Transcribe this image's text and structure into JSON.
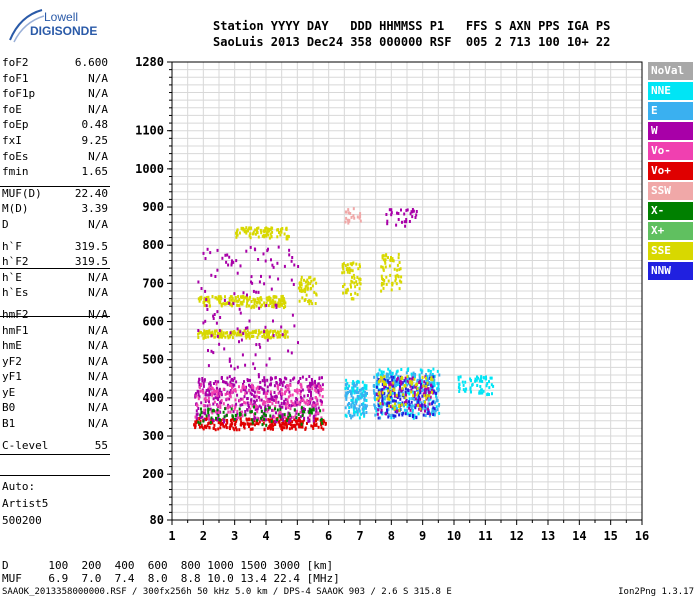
{
  "logo": {
    "line1": "Lowell",
    "line2": "DIGISONDE"
  },
  "header": {
    "row1": "Station YYYY DAY   DDD HHMMSS P1   FFS S AXN PPS IGA PS",
    "row2": "SaoLuis 2013 Dec24 358 000000 RSF  005 2 713 100 10+ 22"
  },
  "params": [
    {
      "label": "foF2",
      "value": "6.600"
    },
    {
      "label": "foF1",
      "value": "N/A"
    },
    {
      "label": "foF1p",
      "value": "N/A"
    },
    {
      "label": "foE",
      "value": "N/A"
    },
    {
      "label": "foEp",
      "value": "0.48"
    },
    {
      "label": "fxI",
      "value": "9.25"
    },
    {
      "label": "foEs",
      "value": "N/A"
    },
    {
      "label": "fmin",
      "value": "1.65"
    },
    {
      "label": "MUF(D)",
      "value": "22.40"
    },
    {
      "label": "M(D)",
      "value": "3.39"
    },
    {
      "label": "D",
      "value": "N/A"
    },
    {
      "label": "h`F",
      "value": "319.5"
    },
    {
      "label": "h`F2",
      "value": "319.5"
    },
    {
      "label": "h`E",
      "value": "N/A"
    },
    {
      "label": "h`Es",
      "value": "N/A"
    },
    {
      "label": "hmF2",
      "value": "N/A"
    },
    {
      "label": "hmF1",
      "value": "N/A"
    },
    {
      "label": "hmE",
      "value": "N/A"
    },
    {
      "label": "yF2",
      "value": "N/A"
    },
    {
      "label": "yF1",
      "value": "N/A"
    },
    {
      "label": "yE",
      "value": "N/A"
    },
    {
      "label": "B0",
      "value": "N/A"
    },
    {
      "label": "B1",
      "value": "N/A"
    },
    {
      "label": "C-level",
      "value": "55"
    }
  ],
  "auto": {
    "line1": "Auto:",
    "line2": "Artist5",
    "line3": "500200"
  },
  "legend": [
    {
      "label": "NoVal",
      "color": "#a8a8a8"
    },
    {
      "label": "NNE",
      "color": "#00e5f5"
    },
    {
      "label": "E",
      "color": "#3ab0f0"
    },
    {
      "label": "W",
      "color": "#a800a8"
    },
    {
      "label": "Vo-",
      "color": "#f040b0"
    },
    {
      "label": "Vo+",
      "color": "#e00000"
    },
    {
      "label": "SSW",
      "color": "#f0a8a8"
    },
    {
      "label": "X-",
      "color": "#008000"
    },
    {
      "label": "X+",
      "color": "#60c060"
    },
    {
      "label": "SSE",
      "color": "#d8d800"
    },
    {
      "label": "NNW",
      "color": "#2020e0"
    }
  ],
  "bottom": {
    "d_row": "D      100  200  400  600  800 1000 1500 3000 [km]",
    "muf_row": "MUF    6.9  7.0  7.4  8.0  8.8 10.0 13.4 22.4 [MHz]",
    "footer_left": "SAAOK_2013358000000.RSF / 300fx256h 50 kHz 5.0 km / DPS-4 SAAOK 903 / 2.6 S 315.8 E",
    "footer_right": "Ion2Png 1.3.17"
  },
  "chart_data": {
    "type": "scatter",
    "xlim": [
      1,
      16
    ],
    "ylim": [
      80,
      1280
    ],
    "x_ticks": [
      "1",
      "2",
      "3",
      "4",
      "5",
      "6",
      "7",
      "8",
      "9",
      "10",
      "11",
      "12",
      "13",
      "14",
      "15",
      "16"
    ],
    "y_ticks": [
      "80",
      "200",
      "300",
      "400",
      "500",
      "600",
      "700",
      "800",
      "900",
      "1000",
      "1100",
      "1280"
    ],
    "grid": true,
    "clusters": [
      {
        "series": "Vo+",
        "x": [
          1.65,
          5.9
        ],
        "y": [
          320,
          350
        ],
        "n": 260
      },
      {
        "series": "W",
        "x": [
          1.7,
          5.8
        ],
        "y": [
          340,
          460
        ],
        "n": 420
      },
      {
        "series": "Vo-",
        "x": [
          1.7,
          5.8
        ],
        "y": [
          350,
          440
        ],
        "n": 220
      },
      {
        "series": "X-",
        "x": [
          1.8,
          5.8
        ],
        "y": [
          330,
          380
        ],
        "n": 90
      },
      {
        "series": "SSE",
        "x": [
          1.8,
          4.7
        ],
        "y": [
          560,
          580
        ],
        "n": 160
      },
      {
        "series": "SSE",
        "x": [
          1.8,
          4.6
        ],
        "y": [
          640,
          670
        ],
        "n": 180
      },
      {
        "series": "SSE",
        "x": [
          3.0,
          4.7
        ],
        "y": [
          820,
          850
        ],
        "n": 90
      },
      {
        "series": "SSE",
        "x": [
          5.0,
          5.6
        ],
        "y": [
          650,
          720
        ],
        "n": 50
      },
      {
        "series": "SSE",
        "x": [
          6.4,
          7.0
        ],
        "y": [
          660,
          760
        ],
        "n": 60
      },
      {
        "series": "SSE",
        "x": [
          7.6,
          8.3
        ],
        "y": [
          680,
          780
        ],
        "n": 60
      },
      {
        "series": "W",
        "x": [
          1.8,
          5.0
        ],
        "y": [
          460,
          800
        ],
        "n": 130
      },
      {
        "series": "NNE",
        "x": [
          7.4,
          9.5
        ],
        "y": [
          350,
          480
        ],
        "n": 180
      },
      {
        "series": "E",
        "x": [
          7.4,
          9.5
        ],
        "y": [
          350,
          470
        ],
        "n": 200
      },
      {
        "series": "NNW",
        "x": [
          7.5,
          9.4
        ],
        "y": [
          350,
          460
        ],
        "n": 140
      },
      {
        "series": "W",
        "x": [
          7.5,
          9.3
        ],
        "y": [
          360,
          460
        ],
        "n": 90
      },
      {
        "series": "SSE",
        "x": [
          7.5,
          9.3
        ],
        "y": [
          370,
          460
        ],
        "n": 80
      },
      {
        "series": "NNE",
        "x": [
          6.5,
          7.2
        ],
        "y": [
          350,
          450
        ],
        "n": 70
      },
      {
        "series": "E",
        "x": [
          6.5,
          7.2
        ],
        "y": [
          350,
          440
        ],
        "n": 70
      },
      {
        "series": "NNE",
        "x": [
          10.1,
          11.3
        ],
        "y": [
          410,
          460
        ],
        "n": 60
      },
      {
        "series": "W",
        "x": [
          7.8,
          8.8
        ],
        "y": [
          850,
          900
        ],
        "n": 30
      },
      {
        "series": "SSW",
        "x": [
          6.5,
          7.0
        ],
        "y": [
          860,
          900
        ],
        "n": 20
      }
    ]
  }
}
